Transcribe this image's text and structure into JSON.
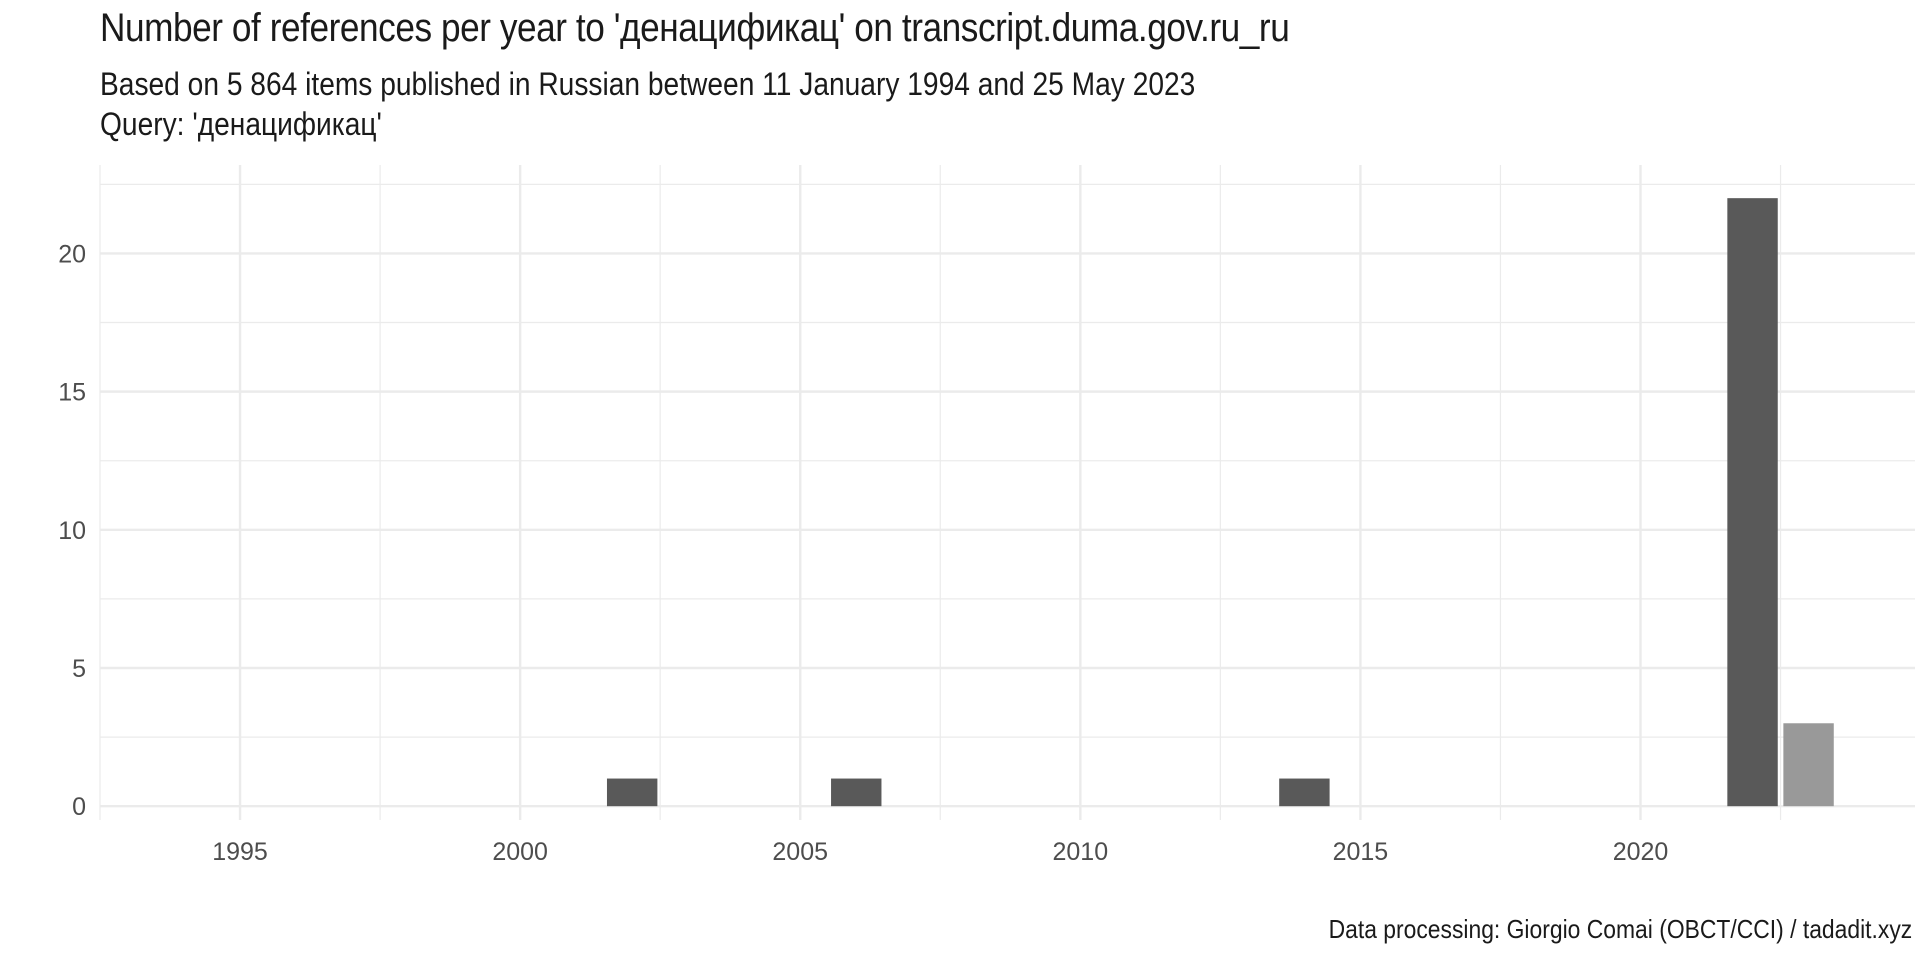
{
  "chart_data": {
    "type": "bar",
    "title": "Number of references per year to 'денацификац' on transcript.duma.gov.ru_ru",
    "subtitle_lines": [
      "Based on 5 864 items published in Russian between 11 January 1994 and 25 May 2023",
      "Query: 'денацификац'"
    ],
    "caption": "Data processing: Giorgio Comai (OBCT/CCI) / tadadit.xyz",
    "xlabel": "",
    "ylabel": "",
    "x_ticks": [
      1995,
      2000,
      2005,
      2010,
      2015,
      2020
    ],
    "y_ticks": [
      0,
      5,
      10,
      15,
      20
    ],
    "xlim": [
      1992.5,
      2024.9
    ],
    "ylim": [
      -0.5,
      23.2
    ],
    "grid": true,
    "legend": "none",
    "colors": {
      "complete_year": "#595959",
      "partial_year": "#999999",
      "grid": "#ebebeb",
      "text": "#1a1a1a",
      "tick_text": "#4d4d4d"
    },
    "series": [
      {
        "x": [
          2002,
          2006,
          2014,
          2022,
          2023
        ],
        "values": [
          1,
          1,
          1,
          22,
          3
        ],
        "highlight": [
          false,
          false,
          false,
          false,
          true
        ]
      }
    ]
  }
}
